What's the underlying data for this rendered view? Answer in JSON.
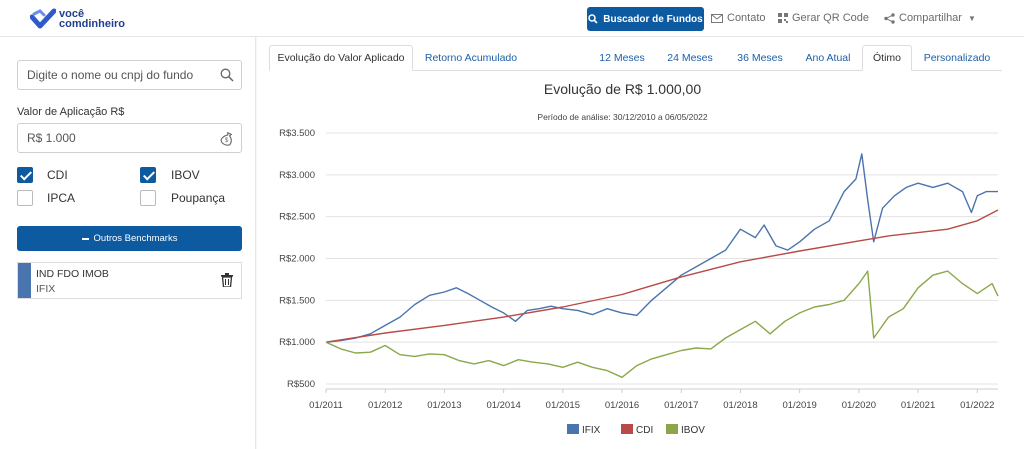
{
  "header": {
    "logo_line1": "você",
    "logo_line2": "comdinheiro",
    "search_funds_label": "Buscador de Fundos",
    "contact_label": "Contato",
    "qr_label": "Gerar QR Code",
    "share_label": "Compartilhar"
  },
  "sidebar": {
    "search_placeholder": "Digite o nome ou cnpj do fundo",
    "amount_label": "Valor de Aplicação R$",
    "amount_value": "R$ 1.000",
    "benchmarks": [
      {
        "label": "CDI",
        "checked": true
      },
      {
        "label": "IBOV",
        "checked": true
      },
      {
        "label": "IPCA",
        "checked": false
      },
      {
        "label": "Poupança",
        "checked": false
      }
    ],
    "other_benchmarks_label": "Outros Benchmarks",
    "fund": {
      "name": "IND FDO IMOB",
      "ticker": "IFIX"
    }
  },
  "tabs": {
    "left": [
      "Evolução do Valor Aplicado",
      "Retorno Acumulado"
    ],
    "right": [
      "12 Meses",
      "24 Meses",
      "36 Meses",
      "Ano Atual",
      "Ótimo",
      "Personalizado"
    ],
    "active_left": "Evolução do Valor Aplicado",
    "active_right": "Ótimo"
  },
  "chart_data": {
    "type": "line",
    "title": "Evolução de R$ 1.000,00",
    "subtitle": "Período de análise: 30/12/2010 a 06/05/2022",
    "y_ticks": [
      "R$3.500",
      "R$3.000",
      "R$2.500",
      "R$2.000",
      "R$1.500",
      "R$1.000",
      "R$500"
    ],
    "x_ticks": [
      "01/2011",
      "01/2012",
      "01/2013",
      "01/2014",
      "01/2015",
      "01/2016",
      "01/2017",
      "01/2018",
      "01/2019",
      "01/2020",
      "01/2021",
      "01/2022"
    ],
    "ylim": [
      500,
      3500
    ],
    "xlim": [
      2011.0,
      2022.35
    ],
    "colors": {
      "IFIX": "#4a74ad",
      "CDI": "#b84a47",
      "IBOV": "#8aa84a"
    },
    "series": [
      {
        "name": "IFIX",
        "x": [
          2011.0,
          2011.25,
          2011.5,
          2011.75,
          2012.0,
          2012.25,
          2012.5,
          2012.75,
          2013.0,
          2013.2,
          2013.4,
          2013.6,
          2013.8,
          2014.0,
          2014.2,
          2014.4,
          2014.6,
          2014.8,
          2015.0,
          2015.25,
          2015.5,
          2015.75,
          2016.0,
          2016.25,
          2016.5,
          2016.75,
          2017.0,
          2017.25,
          2017.5,
          2017.75,
          2018.0,
          2018.25,
          2018.4,
          2018.6,
          2018.8,
          2019.0,
          2019.25,
          2019.5,
          2019.75,
          2019.95,
          2020.05,
          2020.15,
          2020.25,
          2020.4,
          2020.6,
          2020.8,
          2021.0,
          2021.25,
          2021.5,
          2021.75,
          2021.9,
          2022.0,
          2022.15,
          2022.35
        ],
        "y": [
          1000,
          1020,
          1050,
          1100,
          1200,
          1300,
          1450,
          1560,
          1600,
          1650,
          1580,
          1500,
          1420,
          1350,
          1250,
          1380,
          1400,
          1430,
          1400,
          1380,
          1330,
          1400,
          1350,
          1320,
          1500,
          1650,
          1800,
          1900,
          2000,
          2100,
          2350,
          2250,
          2400,
          2150,
          2100,
          2200,
          2350,
          2450,
          2800,
          2950,
          3250,
          2700,
          2200,
          2600,
          2750,
          2850,
          2900,
          2850,
          2900,
          2800,
          2550,
          2750,
          2800,
          2800
        ]
      },
      {
        "name": "CDI",
        "x": [
          2011.0,
          2012.0,
          2013.0,
          2014.0,
          2015.0,
          2016.0,
          2017.0,
          2018.0,
          2019.0,
          2020.0,
          2020.5,
          2021.0,
          2021.5,
          2022.0,
          2022.35
        ],
        "y": [
          1000,
          1110,
          1200,
          1300,
          1420,
          1570,
          1780,
          1960,
          2090,
          2210,
          2270,
          2310,
          2350,
          2450,
          2580
        ]
      },
      {
        "name": "IBOV",
        "x": [
          2011.0,
          2011.25,
          2011.5,
          2011.75,
          2012.0,
          2012.25,
          2012.5,
          2012.75,
          2013.0,
          2013.25,
          2013.5,
          2013.75,
          2014.0,
          2014.25,
          2014.5,
          2014.75,
          2015.0,
          2015.25,
          2015.5,
          2015.75,
          2016.0,
          2016.25,
          2016.5,
          2016.75,
          2017.0,
          2017.25,
          2017.5,
          2017.75,
          2018.0,
          2018.25,
          2018.5,
          2018.75,
          2019.0,
          2019.25,
          2019.5,
          2019.75,
          2020.0,
          2020.15,
          2020.25,
          2020.5,
          2020.75,
          2021.0,
          2021.25,
          2021.5,
          2021.75,
          2022.0,
          2022.25,
          2022.35
        ],
        "y": [
          1000,
          920,
          870,
          880,
          960,
          850,
          830,
          860,
          850,
          780,
          740,
          780,
          720,
          790,
          760,
          740,
          700,
          760,
          700,
          660,
          580,
          720,
          800,
          850,
          900,
          930,
          920,
          1050,
          1150,
          1250,
          1100,
          1250,
          1350,
          1420,
          1450,
          1500,
          1700,
          1850,
          1050,
          1300,
          1400,
          1650,
          1800,
          1850,
          1700,
          1580,
          1700,
          1550
        ]
      }
    ]
  }
}
